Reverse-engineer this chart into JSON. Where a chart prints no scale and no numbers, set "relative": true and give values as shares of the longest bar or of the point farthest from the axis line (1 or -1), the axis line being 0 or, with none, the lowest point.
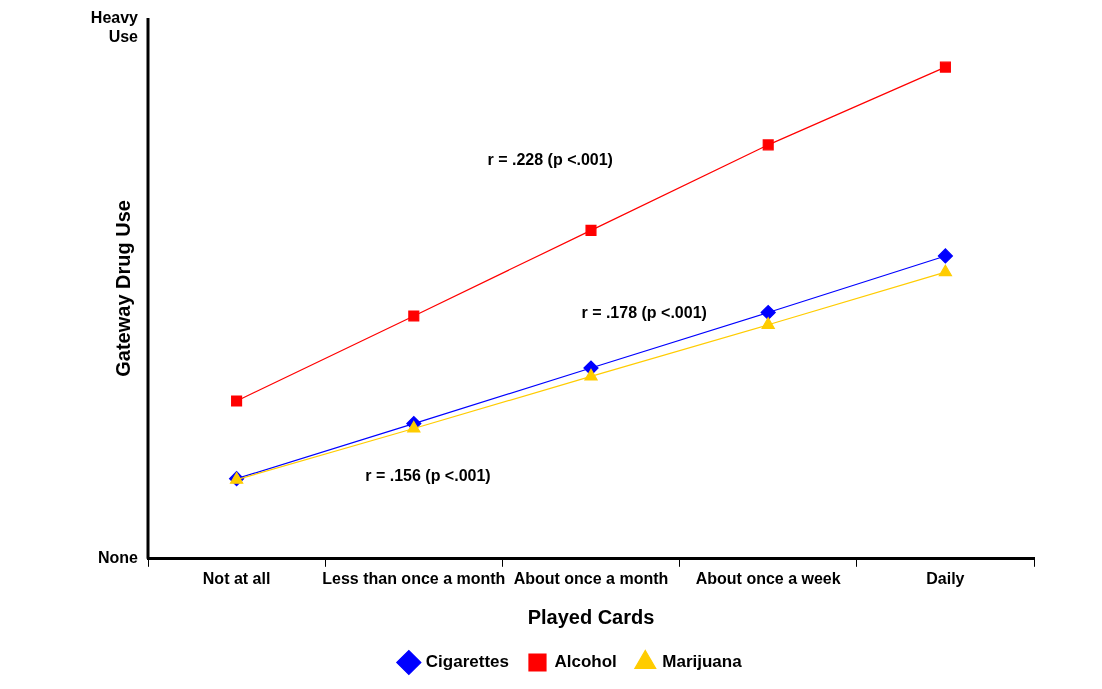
{
  "chart_data": {
    "type": "line",
    "xlabel": "Played Cards",
    "ylabel": "Gateway Drug Use",
    "relative": true,
    "categories": [
      "Not at all",
      "Less than once a month",
      "About once a month",
      "About once a week",
      "Daily"
    ],
    "series": [
      {
        "name": "Cigarettes",
        "color": "#0000ff",
        "marker": "diamond",
        "values": [
          0.163,
          0.275,
          0.388,
          0.501,
          0.616
        ]
      },
      {
        "name": "Alcohol",
        "color": "#ff0000",
        "marker": "square",
        "values": [
          0.321,
          0.494,
          0.668,
          0.842,
          1
        ]
      },
      {
        "name": "Marijuana",
        "color": "#ffcc00",
        "marker": "triangle",
        "values": [
          0.161,
          0.265,
          0.371,
          0.476,
          0.583
        ]
      }
    ],
    "grid": false,
    "legend": "bottom",
    "line_style": "solid",
    "annotations": [
      "Heavy Use",
      "None",
      "r = .228 (p <.001)",
      "r = .178 (p <.001)",
      "r = .156 (p <.001)"
    ]
  }
}
